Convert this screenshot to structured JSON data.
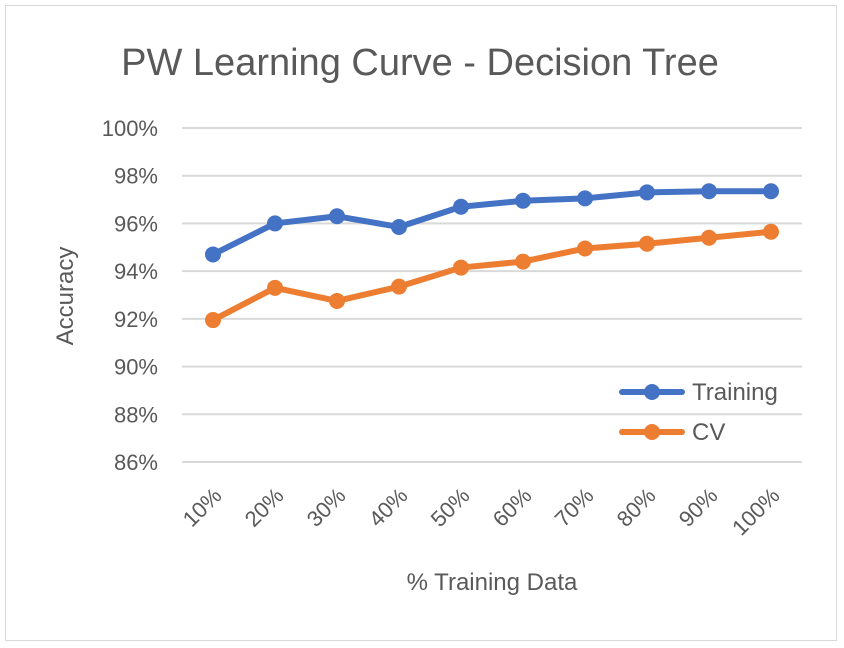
{
  "chart_data": {
    "type": "line",
    "title": "PW Learning Curve - Decision Tree",
    "xlabel": "% Training Data",
    "ylabel": "Accuracy",
    "categories": [
      "10%",
      "20%",
      "30%",
      "40%",
      "50%",
      "60%",
      "70%",
      "80%",
      "90%",
      "100%"
    ],
    "ylim": [
      86,
      100
    ],
    "yticks": [
      86,
      88,
      90,
      92,
      94,
      96,
      98,
      100
    ],
    "ytick_labels": [
      "86%",
      "88%",
      "90%",
      "92%",
      "94%",
      "96%",
      "98%",
      "100%"
    ],
    "grid": true,
    "legend_position": "bottom-right",
    "series": [
      {
        "name": "Training",
        "color": "#4472c4",
        "values": [
          94.7,
          96.0,
          96.3,
          95.85,
          96.7,
          96.95,
          97.05,
          97.3,
          97.35,
          97.35
        ]
      },
      {
        "name": "CV",
        "color": "#ed7d31",
        "values": [
          91.95,
          93.3,
          92.75,
          93.35,
          94.15,
          94.4,
          94.95,
          95.15,
          95.4,
          95.65
        ]
      }
    ]
  }
}
